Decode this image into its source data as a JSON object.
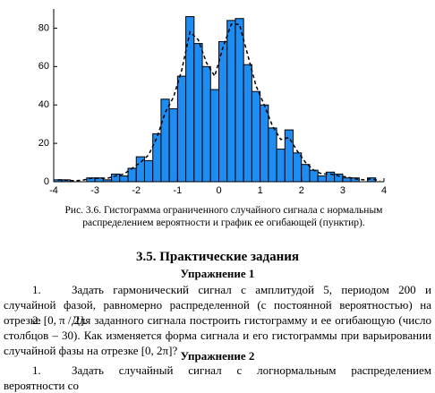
{
  "chart_data": {
    "type": "histogram",
    "bins": [
      -4.0,
      -3.8,
      -3.6,
      -3.4,
      -3.2,
      -3.0,
      -2.8,
      -2.6,
      -2.4,
      -2.2,
      -2.0,
      -1.8,
      -1.6,
      -1.4,
      -1.2,
      -1.0,
      -0.8,
      -0.6,
      -0.4,
      -0.2,
      0.0,
      0.2,
      0.4,
      0.6,
      0.8,
      1.0,
      1.2,
      1.4,
      1.6,
      1.8,
      2.0,
      2.2,
      2.4,
      2.6,
      2.8,
      3.0,
      3.2,
      3.4,
      3.6,
      3.8,
      4.0
    ],
    "values": [
      1,
      1,
      0,
      0,
      2,
      2,
      1,
      4,
      3,
      7,
      13,
      11,
      25,
      43,
      38,
      55,
      86,
      72,
      60,
      48,
      73,
      84,
      85,
      61,
      47,
      40,
      28,
      17,
      27,
      15,
      9,
      6,
      3,
      5,
      4,
      2,
      2,
      0,
      2,
      0
    ],
    "envelope": [
      1,
      0.8,
      0.5,
      0.8,
      1.8,
      1.8,
      1.8,
      3,
      4,
      7,
      10,
      14,
      23,
      36,
      44,
      58,
      78,
      74,
      62,
      55,
      70,
      82,
      82,
      66,
      50,
      40,
      29,
      22,
      23,
      16,
      10,
      6,
      4,
      4,
      3,
      2.5,
      1.5,
      1,
      1.5,
      0.5
    ],
    "color": "#1e8cf0",
    "xlim": [
      -4,
      4
    ],
    "xticks": [
      -4,
      -3,
      -2,
      -1,
      0,
      1,
      2,
      3,
      4
    ],
    "ylim": [
      0,
      90
    ],
    "yticks": [
      0,
      20,
      40,
      60,
      80
    ]
  },
  "document": {
    "caption": "Рис. 3.6. Гистограмма ограниченного случайного сигнала с нормальным распределением вероятности и график ее огибающей (пунктир).",
    "section_title": "3.5. Практические задания",
    "exercises": [
      {
        "title": "Упражнение 1",
        "items": [
          {
            "number": "1.",
            "text": "Задать гармонический сигнал с амплитудой 5, периодом 200 и случайной фазой, равномерно распределенной (с постоянной вероятностью) на отрезке [0, π / 2]."
          },
          {
            "number": "2.",
            "text": "Для заданного сигнала построить гистограмму и ее огибающую (число столбцов – 30). Как изменяется форма сигнала и его гистограммы при варьировании случайной фазы на отрезке [0, 2π]?"
          }
        ]
      },
      {
        "title": "Упражнение 2",
        "items": [
          {
            "number": "1.",
            "text": "Задать случайный сигнал с логнормальным распределением вероятности со"
          }
        ]
      }
    ]
  }
}
